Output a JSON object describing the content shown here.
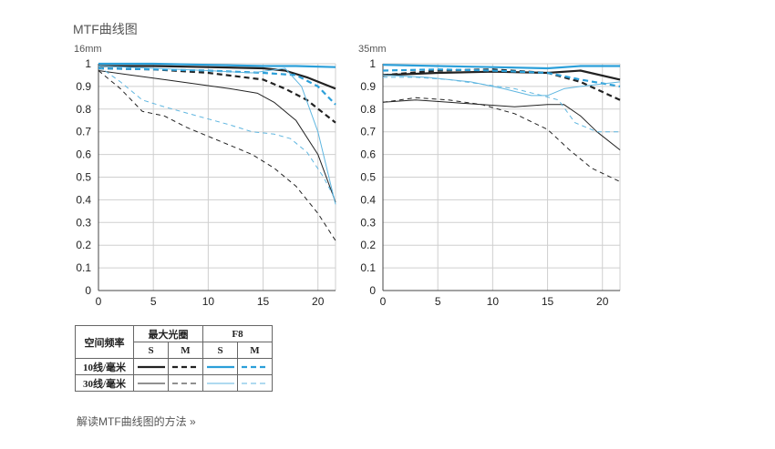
{
  "page": {
    "title": "MTF曲线图",
    "link_text": "解读MTF曲线图的方法 »"
  },
  "colors": {
    "black": "#222222",
    "blue": "#2b9fd9",
    "light_blue": "#5fb6e0",
    "grid": "#cfcfcf",
    "axis": "#444444"
  },
  "legend": {
    "header_freq": "空间频率",
    "header_max_aperture": "最大光圈",
    "header_f8": "F8",
    "sub_s": "S",
    "sub_m": "M",
    "rows": [
      {
        "label": "10线/毫米"
      },
      {
        "label": "30线/毫米"
      }
    ]
  },
  "chart_data": [
    {
      "type": "line",
      "title": "16mm",
      "xlim": [
        0,
        21.6
      ],
      "ylim": [
        0,
        1
      ],
      "xticks": [
        "0",
        "5",
        "10",
        "15",
        "20"
      ],
      "yticks": [
        "0",
        "0.1",
        "0.2",
        "0.3",
        "0.4",
        "0.5",
        "0.6",
        "0.7",
        "0.8",
        "0.9",
        "1"
      ],
      "grid": true,
      "series": [
        {
          "style": "black-bold-solid",
          "x": [
            0,
            5,
            10,
            15,
            17,
            19,
            21.6
          ],
          "y": [
            0.99,
            0.99,
            0.985,
            0.98,
            0.97,
            0.94,
            0.89
          ]
        },
        {
          "style": "black-bold-dash",
          "x": [
            0,
            5,
            10,
            15,
            17,
            19,
            21.6
          ],
          "y": [
            0.98,
            0.975,
            0.96,
            0.93,
            0.89,
            0.84,
            0.74
          ]
        },
        {
          "style": "black-thin-solid",
          "x": [
            0,
            3,
            6,
            9,
            12,
            14.5,
            16,
            18,
            20,
            21.6
          ],
          "y": [
            0.97,
            0.95,
            0.93,
            0.91,
            0.89,
            0.87,
            0.83,
            0.75,
            0.6,
            0.39
          ]
        },
        {
          "style": "black-thin-dash",
          "x": [
            0,
            2,
            4,
            6,
            8,
            10,
            12,
            14,
            16,
            18,
            20,
            21.6
          ],
          "y": [
            0.97,
            0.89,
            0.79,
            0.77,
            0.72,
            0.68,
            0.64,
            0.6,
            0.54,
            0.46,
            0.34,
            0.22
          ]
        },
        {
          "style": "blue-bold-solid",
          "x": [
            0,
            5,
            10,
            15,
            18,
            21.6
          ],
          "y": [
            1.0,
            1.0,
            0.995,
            0.99,
            0.99,
            0.985
          ]
        },
        {
          "style": "blue-bold-dash",
          "x": [
            0,
            5,
            10,
            15,
            18,
            20,
            21.6
          ],
          "y": [
            0.98,
            0.975,
            0.97,
            0.96,
            0.95,
            0.9,
            0.82
          ]
        },
        {
          "style": "blue-thin-solid",
          "x": [
            0,
            5,
            10,
            14,
            17,
            18.5,
            20,
            21.6
          ],
          "y": [
            0.99,
            0.98,
            0.97,
            0.96,
            0.98,
            0.9,
            0.7,
            0.38
          ]
        },
        {
          "style": "blue-thin-dash",
          "x": [
            0,
            2,
            4,
            6,
            9,
            12,
            14,
            16,
            17.5,
            19,
            20.5,
            21.6
          ],
          "y": [
            0.99,
            0.92,
            0.84,
            0.81,
            0.77,
            0.73,
            0.7,
            0.69,
            0.67,
            0.61,
            0.5,
            0.4
          ]
        }
      ]
    },
    {
      "type": "line",
      "title": "35mm",
      "xlim": [
        0,
        21.6
      ],
      "ylim": [
        0,
        1
      ],
      "xticks": [
        "0",
        "5",
        "10",
        "15",
        "20"
      ],
      "yticks": [
        "0",
        "0.1",
        "0.2",
        "0.3",
        "0.4",
        "0.5",
        "0.6",
        "0.7",
        "0.8",
        "0.9",
        "1"
      ],
      "grid": true,
      "series": [
        {
          "style": "black-bold-solid",
          "x": [
            0,
            5,
            10,
            15,
            18,
            21.6
          ],
          "y": [
            0.95,
            0.96,
            0.965,
            0.96,
            0.97,
            0.93
          ]
        },
        {
          "style": "black-bold-dash",
          "x": [
            0,
            5,
            10,
            15,
            18,
            21.6
          ],
          "y": [
            0.95,
            0.97,
            0.975,
            0.96,
            0.92,
            0.84
          ]
        },
        {
          "style": "black-thin-solid",
          "x": [
            0,
            3,
            6,
            9,
            12,
            15,
            16.5,
            18,
            19.5,
            21.6
          ],
          "y": [
            0.83,
            0.84,
            0.83,
            0.82,
            0.81,
            0.82,
            0.82,
            0.77,
            0.7,
            0.62
          ]
        },
        {
          "style": "black-thin-dash",
          "x": [
            0,
            3,
            6,
            9,
            12,
            15,
            17,
            19,
            21.6
          ],
          "y": [
            0.83,
            0.85,
            0.84,
            0.82,
            0.78,
            0.71,
            0.62,
            0.54,
            0.48
          ]
        },
        {
          "style": "blue-bold-solid",
          "x": [
            0,
            5,
            10,
            15,
            18,
            21.6
          ],
          "y": [
            0.995,
            0.99,
            0.985,
            0.98,
            0.99,
            0.99
          ]
        },
        {
          "style": "blue-bold-dash",
          "x": [
            0,
            5,
            10,
            15,
            18,
            21.6
          ],
          "y": [
            0.97,
            0.975,
            0.97,
            0.96,
            0.93,
            0.9
          ]
        },
        {
          "style": "blue-thin-solid",
          "x": [
            0,
            4,
            8,
            11,
            13.5,
            15,
            16.5,
            18,
            21.6
          ],
          "y": [
            0.95,
            0.94,
            0.92,
            0.89,
            0.86,
            0.86,
            0.89,
            0.9,
            0.92
          ]
        },
        {
          "style": "blue-thin-dash",
          "x": [
            0,
            3,
            6,
            9,
            12,
            14.5,
            16,
            17.5,
            19.5,
            21.6
          ],
          "y": [
            0.94,
            0.94,
            0.93,
            0.91,
            0.89,
            0.86,
            0.84,
            0.74,
            0.7,
            0.7
          ]
        }
      ]
    }
  ]
}
